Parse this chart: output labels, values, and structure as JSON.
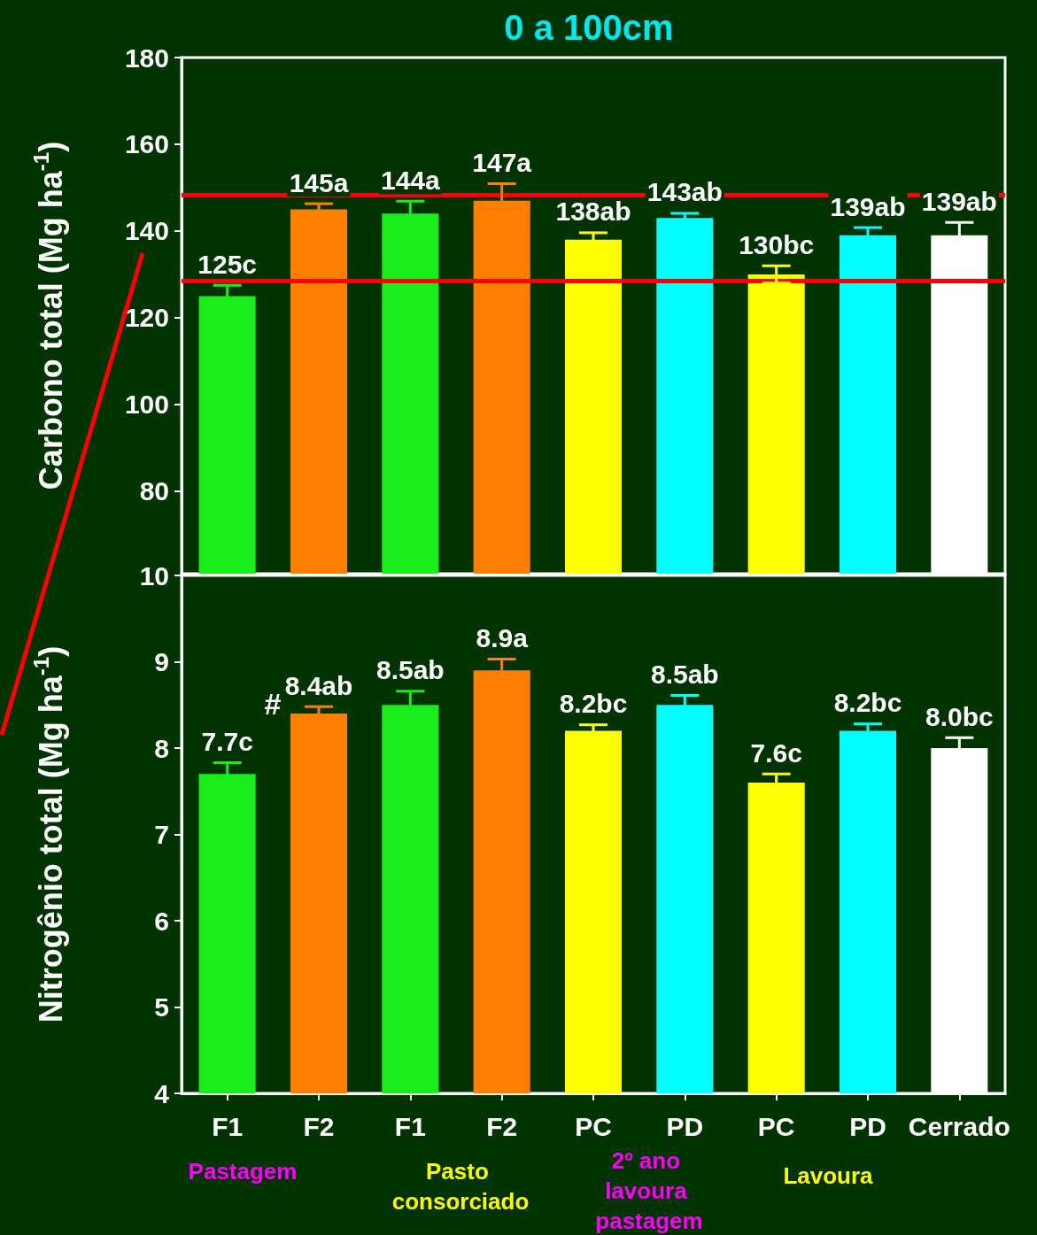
{
  "chart_data": [
    {
      "type": "bar",
      "title": "0 a 100cm",
      "ylabel": "Carbono total (Mg ha$^{-1}$)",
      "categories": [
        "F1",
        "F2",
        "F1",
        "F2",
        "PC",
        "PD",
        "PC",
        "PD",
        "Cerrado"
      ],
      "values": [
        125,
        145,
        144,
        147,
        138,
        143,
        130,
        139,
        139
      ],
      "colors": [
        "#1aee1a",
        "#ff7f00",
        "#1aee1a",
        "#ff7f00",
        "#ffff00",
        "#00ffff",
        "#ffff00",
        "#00ffff",
        "#ffffff"
      ],
      "errors": [
        2.5,
        1.3,
        2.9,
        3.9,
        1.6,
        1.1,
        2,
        1.8,
        3
      ],
      "value_labels": [
        "125c",
        "145a",
        "144a",
        "147a",
        "138ab",
        "143ab",
        "130bc",
        "139ab",
        "139ab"
      ],
      "ylim": [
        61,
        180
      ],
      "yticks": [
        80,
        100,
        120,
        140,
        160,
        180
      ],
      "tick_labels": "y",
      "ref_lines": [
        {
          "axis": "y",
          "value": 148.4,
          "color": "#ff0000"
        },
        {
          "axis": "y",
          "value": 128.6,
          "color": "#ff0000"
        }
      ]
    },
    {
      "type": "bar",
      "ylabel": "Nitrogênio total (Mg ha$^{-1}$)",
      "categories": [
        "F1",
        "F2",
        "F1",
        "F2",
        "PC",
        "PD",
        "PC",
        "PD",
        "Cerrado"
      ],
      "values": [
        7.7,
        8.4,
        8.5,
        8.9,
        8.2,
        8.5,
        7.6,
        8.2,
        8.0
      ],
      "colors": [
        "#1aee1a",
        "#ff7f00",
        "#1aee1a",
        "#ff7f00",
        "#ffff00",
        "#00ffff",
        "#ffff00",
        "#00ffff",
        "#ffffff"
      ],
      "errors": [
        0.13,
        0.08,
        0.16,
        0.13,
        0.07,
        0.11,
        0.1,
        0.08,
        0.12
      ],
      "value_labels": [
        "7.7c",
        "8.4ab",
        "8.5ab",
        "8.9a",
        "8.2bc",
        "8.5ab",
        "7.6c",
        "8.2bc",
        "8.0bc"
      ],
      "ylim": [
        4,
        10
      ],
      "yticks": [
        4,
        5,
        6,
        7,
        8,
        9,
        10
      ],
      "annotations": [
        "#",
        "Pastagem",
        "Pasto consorciado",
        "2º ano lavoura pastagem",
        "Lavoura"
      ]
    }
  ]
}
